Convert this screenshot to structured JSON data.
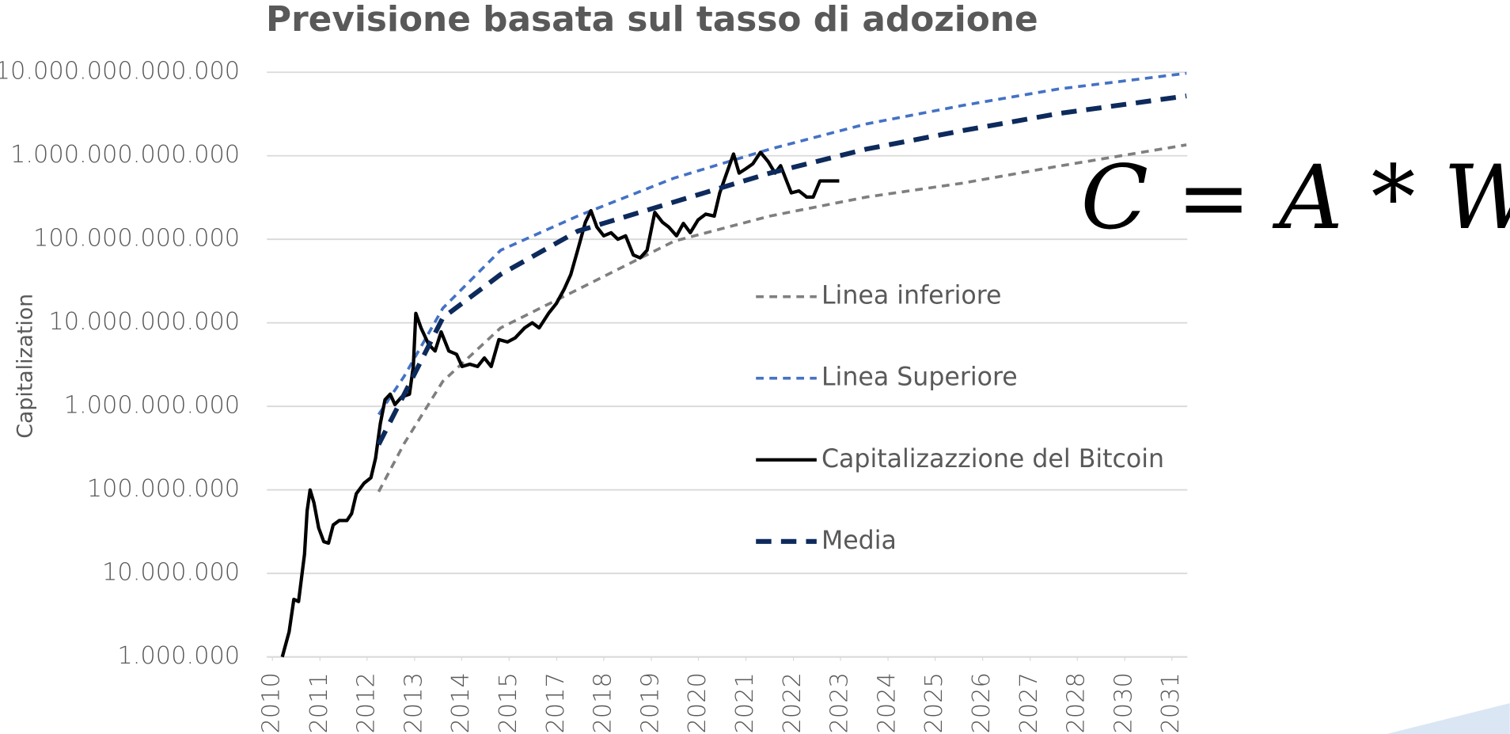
{
  "chart_data": {
    "type": "line",
    "title": "Previsione basata sul tasso di adozione",
    "ylabel": "Capitalization",
    "annotation": "C = A * W",
    "log_y": true,
    "grid": true,
    "xlim": [
      2010,
      2031.5
    ],
    "ylim": [
      1000000,
      10000000000000
    ],
    "yticks": [
      {
        "value": 1000000,
        "label": "1.000.000"
      },
      {
        "value": 10000000,
        "label": "10.000.000"
      },
      {
        "value": 100000000,
        "label": "100.000.000"
      },
      {
        "value": 1000000000,
        "label": "1.000.000.000"
      },
      {
        "value": 10000000000,
        "label": "10.000.000.000"
      },
      {
        "value": 100000000000,
        "label": "100.000.000.000"
      },
      {
        "value": 1000000000000,
        "label": "1.000.000.000.000"
      },
      {
        "value": 10000000000000,
        "label": "10.000.000.000.000"
      }
    ],
    "xticks": [
      {
        "value": 2010.13,
        "label": "2010"
      },
      {
        "value": 2011.24,
        "label": "2011"
      },
      {
        "value": 2012.34,
        "label": "2012"
      },
      {
        "value": 2013.45,
        "label": "2013"
      },
      {
        "value": 2014.55,
        "label": "2014"
      },
      {
        "value": 2015.66,
        "label": "2015"
      },
      {
        "value": 2016.77,
        "label": "2017"
      },
      {
        "value": 2017.87,
        "label": "2018"
      },
      {
        "value": 2018.98,
        "label": "2019"
      },
      {
        "value": 2020.08,
        "label": "2020"
      },
      {
        "value": 2021.19,
        "label": "2021"
      },
      {
        "value": 2022.3,
        "label": "2022"
      },
      {
        "value": 2023.4,
        "label": "2023"
      },
      {
        "value": 2024.51,
        "label": "2024"
      },
      {
        "value": 2025.61,
        "label": "2025"
      },
      {
        "value": 2026.72,
        "label": "2026"
      },
      {
        "value": 2027.83,
        "label": "2027"
      },
      {
        "value": 2028.93,
        "label": "2028"
      },
      {
        "value": 2030.04,
        "label": "2030"
      },
      {
        "value": 2031.14,
        "label": "2031"
      }
    ],
    "series": [
      {
        "name": "Linea inferiore",
        "color": "#7f7f7f",
        "dash": "8 6",
        "width": 3,
        "x": [
          2012.61,
          2013.21,
          2014.11,
          2015.46,
          2017.26,
          2019.51,
          2021.75,
          2024.0,
          2026.25,
          2028.49,
          2031.48
        ],
        "values": [
          95000000,
          360000000,
          2000000000,
          8700000000,
          25000000000,
          95000000000,
          190000000000,
          320000000000,
          470000000000,
          750000000000,
          1350000000000
        ]
      },
      {
        "name": "Linea Superiore",
        "color": "#4472c4",
        "dash": "8 6",
        "width": 3,
        "x": [
          2012.61,
          2013.21,
          2014.11,
          2015.46,
          2017.26,
          2019.51,
          2021.75,
          2024.0,
          2026.25,
          2028.49,
          2031.48
        ],
        "values": [
          800000000,
          2300000000,
          15000000000,
          74000000000,
          190000000000,
          540000000000,
          1200000000000,
          2400000000000,
          4000000000000,
          6300000000000,
          9700000000000
        ]
      },
      {
        "name": "Capitalizazzione del Bitcoin",
        "color": "#000000",
        "dash": "",
        "width": 3.5,
        "x": [
          2010.36,
          2010.52,
          2010.63,
          2010.74,
          2010.88,
          2010.94,
          2011.01,
          2011.1,
          2011.21,
          2011.33,
          2011.44,
          2011.55,
          2011.69,
          2011.87,
          2011.98,
          2012.09,
          2012.27,
          2012.43,
          2012.54,
          2012.65,
          2012.76,
          2012.88,
          2012.99,
          2013.15,
          2013.33,
          2013.42,
          2013.48,
          2013.6,
          2013.78,
          2013.93,
          2014.07,
          2014.25,
          2014.43,
          2014.56,
          2014.74,
          2014.92,
          2015.08,
          2015.24,
          2015.42,
          2015.62,
          2015.8,
          2016.02,
          2016.2,
          2016.36,
          2016.58,
          2016.76,
          2016.94,
          2017.1,
          2017.26,
          2017.44,
          2017.57,
          2017.71,
          2017.87,
          2018.04,
          2018.2,
          2018.38,
          2018.56,
          2018.72,
          2018.88,
          2019.06,
          2019.24,
          2019.39,
          2019.57,
          2019.73,
          2019.89,
          2020.07,
          2020.25,
          2020.45,
          2020.58,
          2020.74,
          2020.9,
          2021.03,
          2021.19,
          2021.35,
          2021.53,
          2021.71,
          2021.87,
          2022.0,
          2022.16,
          2022.25,
          2022.43,
          2022.61,
          2022.76,
          2022.92,
          2023.1,
          2023.37
        ],
        "values": [
          1000000,
          2000000,
          4900000,
          4600000,
          17000000,
          56000000,
          100000000,
          70000000,
          35000000,
          24000000,
          23000000,
          38000000,
          43000000,
          43000000,
          52000000,
          90000000,
          120000000,
          140000000,
          240000000,
          620000000,
          1200000000,
          1400000000,
          1050000000,
          1300000000,
          1400000000,
          3000000000,
          13000000000,
          8700000000,
          5500000000,
          4600000000,
          7800000000,
          4600000000,
          4200000000,
          3000000000,
          3200000000,
          3000000000,
          3800000000,
          3000000000,
          6300000000,
          5900000000,
          6600000000,
          8700000000,
          10000000000,
          8700000000,
          13000000000,
          17000000000,
          25000000000,
          38000000000,
          74000000000,
          160000000000,
          220000000000,
          140000000000,
          110000000000,
          120000000000,
          100000000000,
          110000000000,
          65000000000,
          60000000000,
          74000000000,
          210000000000,
          160000000000,
          140000000000,
          110000000000,
          155000000000,
          120000000000,
          170000000000,
          200000000000,
          190000000000,
          360000000000,
          620000000000,
          1050000000000,
          620000000000,
          700000000000,
          800000000000,
          1100000000000,
          850000000000,
          620000000000,
          760000000000,
          470000000000,
          360000000000,
          380000000000,
          320000000000,
          320000000000,
          500000000000,
          500000000000,
          500000000000
        ]
      },
      {
        "name": "Media",
        "color": "#0d2a5c",
        "dash": "16 10",
        "width": 5,
        "x": [
          2012.61,
          2013.21,
          2014.11,
          2015.46,
          2017.26,
          2019.51,
          2021.75,
          2024.0,
          2026.25,
          2028.49,
          2031.48
        ],
        "values": [
          350000000,
          1400000000,
          11500000000,
          38000000000,
          125000000000,
          280000000000,
          620000000000,
          1200000000000,
          2000000000000,
          3200000000000,
          5200000000000
        ]
      }
    ]
  }
}
